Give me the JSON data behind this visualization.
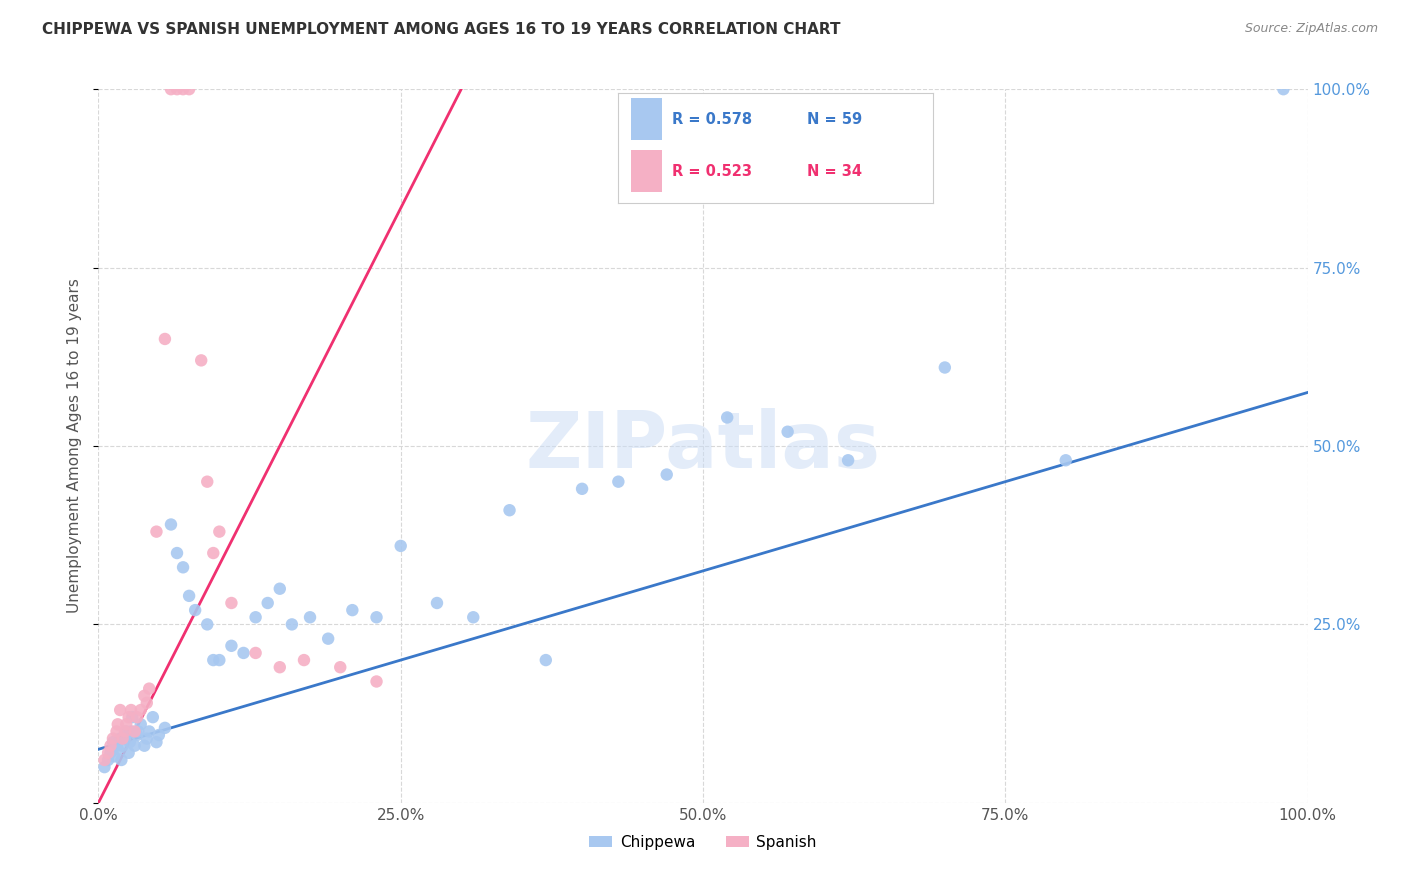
{
  "title": "CHIPPEWA VS SPANISH UNEMPLOYMENT AMONG AGES 16 TO 19 YEARS CORRELATION CHART",
  "source": "Source: ZipAtlas.com",
  "ylabel": "Unemployment Among Ages 16 to 19 years",
  "xlim": [
    0,
    1
  ],
  "ylim": [
    0,
    1
  ],
  "xticks": [
    0.0,
    0.25,
    0.5,
    0.75,
    1.0
  ],
  "yticks": [
    0.0,
    0.25,
    0.5,
    0.75,
    1.0
  ],
  "xticklabels": [
    "0.0%",
    "25.0%",
    "50.0%",
    "75.0%",
    "100.0%"
  ],
  "right_yticklabels": [
    "",
    "25.0%",
    "50.0%",
    "75.0%",
    "100.0%"
  ],
  "chippewa_color": "#a8c8f0",
  "spanish_color": "#f5b0c5",
  "chippewa_line_color": "#3a78c9",
  "spanish_line_color": "#f03070",
  "chippewa_R": 0.578,
  "chippewa_N": 59,
  "spanish_R": 0.523,
  "spanish_N": 34,
  "legend_label_chippewa": "Chippewa",
  "legend_label_spanish": "Spanish",
  "watermark": "ZIPatlas",
  "background_color": "#ffffff",
  "grid_color": "#d8d8d8",
  "chippewa_x": [
    0.005,
    0.008,
    0.01,
    0.012,
    0.013,
    0.015,
    0.016,
    0.018,
    0.019,
    0.02,
    0.022,
    0.023,
    0.025,
    0.026,
    0.027,
    0.028,
    0.03,
    0.032,
    0.033,
    0.035,
    0.038,
    0.04,
    0.042,
    0.045,
    0.048,
    0.05,
    0.055,
    0.06,
    0.065,
    0.07,
    0.075,
    0.08,
    0.09,
    0.095,
    0.1,
    0.11,
    0.12,
    0.13,
    0.14,
    0.15,
    0.16,
    0.175,
    0.19,
    0.21,
    0.23,
    0.25,
    0.28,
    0.31,
    0.34,
    0.37,
    0.4,
    0.43,
    0.47,
    0.52,
    0.57,
    0.62,
    0.7,
    0.8,
    0.98
  ],
  "chippewa_y": [
    0.05,
    0.06,
    0.07,
    0.085,
    0.065,
    0.08,
    0.075,
    0.09,
    0.06,
    0.08,
    0.09,
    0.1,
    0.07,
    0.085,
    0.1,
    0.12,
    0.08,
    0.095,
    0.1,
    0.11,
    0.08,
    0.09,
    0.1,
    0.12,
    0.085,
    0.095,
    0.105,
    0.39,
    0.35,
    0.33,
    0.29,
    0.27,
    0.25,
    0.2,
    0.2,
    0.22,
    0.21,
    0.26,
    0.28,
    0.3,
    0.25,
    0.26,
    0.23,
    0.27,
    0.26,
    0.36,
    0.28,
    0.26,
    0.41,
    0.2,
    0.44,
    0.45,
    0.46,
    0.54,
    0.52,
    0.48,
    0.61,
    0.48,
    1.0
  ],
  "spanish_x": [
    0.005,
    0.008,
    0.01,
    0.012,
    0.015,
    0.016,
    0.018,
    0.02,
    0.022,
    0.023,
    0.025,
    0.027,
    0.03,
    0.032,
    0.035,
    0.038,
    0.04,
    0.042,
    0.048,
    0.055,
    0.06,
    0.065,
    0.07,
    0.075,
    0.085,
    0.09,
    0.095,
    0.1,
    0.11,
    0.13,
    0.15,
    0.17,
    0.2,
    0.23
  ],
  "spanish_y": [
    0.06,
    0.07,
    0.08,
    0.09,
    0.1,
    0.11,
    0.13,
    0.09,
    0.1,
    0.11,
    0.12,
    0.13,
    0.1,
    0.12,
    0.13,
    0.15,
    0.14,
    0.16,
    0.38,
    0.65,
    1.0,
    1.0,
    1.0,
    1.0,
    0.62,
    0.45,
    0.35,
    0.38,
    0.28,
    0.21,
    0.19,
    0.2,
    0.19,
    0.17
  ],
  "chippewa_line_x": [
    0.0,
    1.0
  ],
  "chippewa_line_y": [
    0.075,
    0.575
  ],
  "spanish_line_x": [
    0.0,
    0.3
  ],
  "spanish_line_y": [
    0.0,
    1.0
  ]
}
